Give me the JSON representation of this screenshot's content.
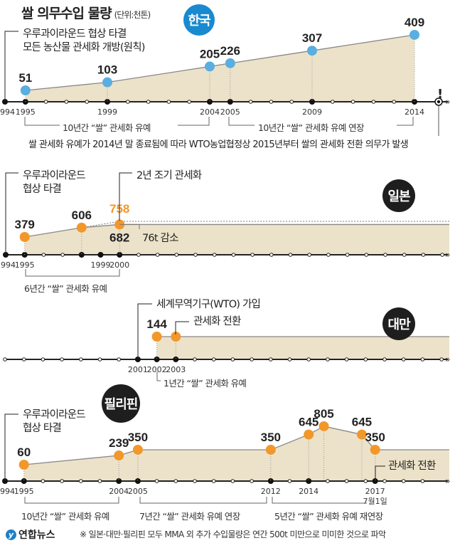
{
  "title": "쌀 의무수입 물량",
  "unit": "(단위:천톤)",
  "colors": {
    "korea_dot": "#5aaee0",
    "orange": "#f2972a",
    "fill": "#ece2c9",
    "axis": "#222222",
    "badge_blue": "#1a8ad0",
    "badge_black": "#1e1e1e"
  },
  "chart_data": [
    {
      "type": "area",
      "country": "한국",
      "badge": "한국",
      "points": [
        {
          "year": "1995",
          "value": 51
        },
        {
          "year": "1999",
          "value": 103
        },
        {
          "year": "2004",
          "value": 205
        },
        {
          "year": "2005",
          "value": 226
        },
        {
          "year": "2009",
          "value": 307
        },
        {
          "year": "2014",
          "value": 409
        }
      ],
      "year_labels": [
        "1994",
        "1995",
        "1999",
        "2004",
        "2005",
        "2009",
        "2014"
      ],
      "annotations": {
        "start": [
          "우루과이라운드 협상 타결",
          "모든 농산물 관세화 개방(원칙)"
        ],
        "bracket1": "10년간 “쌀” 관세화 유예",
        "bracket2": "10년간 “쌀” 관세화 유예 연장",
        "end_mark": "!",
        "note": "쌀 관세화 유예가 2014년 말 종료됨에 따라 WTO농업협정상 2015년부터 쌀의 관세화 전환 의무가 발생"
      }
    },
    {
      "type": "area",
      "country": "일본",
      "badge": "일본",
      "points": [
        {
          "year": "1995",
          "value": 379
        },
        {
          "year": "1998",
          "value": 606
        },
        {
          "year": "2000",
          "value": 682
        }
      ],
      "planned": {
        "year": "2000",
        "value": 758
      },
      "year_labels": [
        "1994",
        "1995",
        "1999",
        "2000"
      ],
      "annotations": {
        "start": [
          "우루과이라운드",
          "협상 타결"
        ],
        "early": "2년 조기 관세화",
        "reduction": "76t 감소",
        "bracket": "6년간 “쌀” 관세화 유예"
      }
    },
    {
      "type": "area",
      "country": "대만",
      "badge": "대만",
      "points": [
        {
          "year": "2002",
          "value": 144
        },
        {
          "year": "2003",
          "value": 144
        }
      ],
      "year_labels": [
        "2001",
        "2002",
        "2003"
      ],
      "annotations": {
        "wto": "세계무역기구(WTO) 가입",
        "tariff": "관세화 전환",
        "bracket": "1년간 “쌀” 관세화 유예"
      }
    },
    {
      "type": "area",
      "country": "필리핀",
      "badge": "필리핀",
      "points": [
        {
          "year": "1995",
          "value": 60
        },
        {
          "year": "2004",
          "value": 239
        },
        {
          "year": "2005",
          "value": 350
        },
        {
          "year": "2012",
          "value": 350
        },
        {
          "year": "2014",
          "value": 645
        },
        {
          "year": "2015",
          "value": 805
        },
        {
          "year": "2016",
          "value": 645
        },
        {
          "year": "2017",
          "value": 350
        }
      ],
      "year_labels": [
        "1994",
        "1995",
        "2004",
        "2005",
        "2012",
        "2014",
        "2017",
        "7월1일"
      ],
      "annotations": {
        "start": [
          "우루과이라운드",
          "협상 타결"
        ],
        "tariff": "관세화 전환",
        "bracket1": "10년간 “쌀” 관세화 유예",
        "bracket2": "7년간 “쌀” 관세화 유예 연장",
        "bracket3": "5년간 “쌀” 관세화 유예 재연장"
      }
    }
  ],
  "footer": {
    "logo": "연합뉴스",
    "note": "※ 일본·대만·필리핀 모두 MMA 외 추가 수입물량은 연간 500t 미만으로 미미한 것으로 파악"
  }
}
